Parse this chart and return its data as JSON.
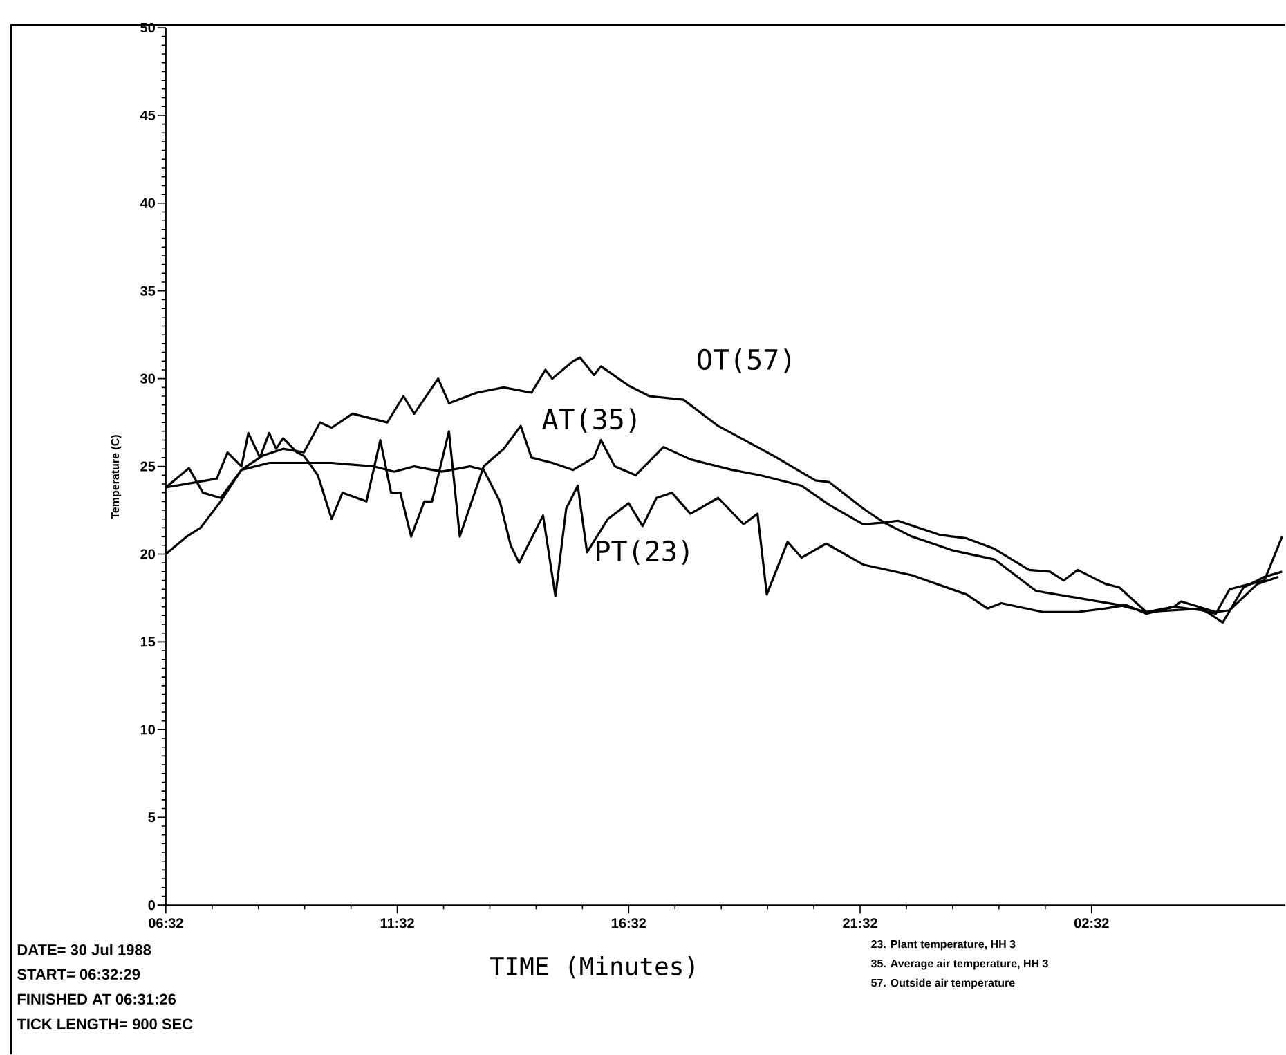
{
  "chart_data": {
    "type": "line",
    "xlabel": "TIME (Minutes)",
    "ylabel": "Temperature (C)",
    "xlim": [
      "1988-07-30T06:32",
      "1988-07-31T06:43"
    ],
    "ylim": [
      0,
      50
    ],
    "xticks": [
      {
        "value": "1988-07-30T06:32",
        "label": "06:32"
      },
      {
        "value": "1988-07-30T11:32",
        "label": "11:32"
      },
      {
        "value": "1988-07-30T16:32",
        "label": "16:32"
      },
      {
        "value": "1988-07-30T21:32",
        "label": "21:32"
      },
      {
        "value": "1988-07-31T02:32",
        "label": "02:32"
      }
    ],
    "yticks": [
      0,
      5,
      10,
      15,
      20,
      25,
      30,
      35,
      40,
      45,
      50
    ],
    "marker": "none",
    "line_style": "solid",
    "grid": false,
    "series": [
      {
        "name": "OT(57)",
        "color": "#000000",
        "x": [
          "1988-07-30T06:32",
          "1988-07-30T07:02",
          "1988-07-30T07:20",
          "1988-07-30T07:43",
          "1988-07-30T08:10",
          "1988-07-30T08:37",
          "1988-07-30T09:04",
          "1988-07-30T09:31",
          "1988-07-30T09:52",
          "1988-07-30T10:07",
          "1988-07-30T10:34",
          "1988-07-30T11:19",
          "1988-07-30T11:40",
          "1988-07-30T11:54",
          "1988-07-30T12:25",
          "1988-07-30T12:39",
          "1988-07-30T13:15",
          "1988-07-30T13:50",
          "1988-07-30T14:26",
          "1988-07-30T14:44",
          "1988-07-30T14:53",
          "1988-07-30T15:20",
          "1988-07-30T15:29",
          "1988-07-30T15:47",
          "1988-07-30T15:56",
          "1988-07-30T16:32",
          "1988-07-30T16:59",
          "1988-07-30T17:43",
          "1988-07-30T18:28",
          "1988-07-30T19:40",
          "1988-07-30T20:34",
          "1988-07-30T20:52",
          "1988-07-30T21:36",
          "1988-07-30T22:03",
          "1988-07-30T22:21",
          "1988-07-30T23:15",
          "1988-07-30T23:50",
          "1988-07-31T00:26",
          "1988-07-31T01:11",
          "1988-07-31T01:38",
          "1988-07-31T01:56",
          "1988-07-31T02:14",
          "1988-07-31T02:50",
          "1988-07-31T03:08",
          "1988-07-31T03:43",
          "1988-07-31T04:19",
          "1988-07-31T04:55",
          "1988-07-31T05:13",
          "1988-07-31T05:31",
          "1988-07-31T05:58",
          "1988-07-31T06:16",
          "1988-07-31T06:39"
        ],
        "values": [
          23.8,
          24.9,
          23.5,
          23.2,
          24.8,
          25.6,
          26.0,
          25.8,
          27.5,
          27.2,
          28.0,
          27.5,
          29.0,
          28.0,
          30.0,
          28.6,
          29.2,
          29.5,
          29.2,
          30.5,
          30.0,
          31.0,
          31.2,
          30.2,
          30.7,
          29.6,
          29.0,
          28.8,
          27.3,
          25.6,
          24.2,
          24.1,
          22.6,
          21.8,
          21.9,
          21.1,
          20.9,
          20.3,
          19.1,
          19.0,
          18.5,
          19.1,
          18.3,
          18.1,
          16.7,
          17.0,
          16.8,
          16.6,
          18.0,
          18.3,
          18.5,
          21.0
        ]
      },
      {
        "name": "AT(35)",
        "color": "#000000",
        "x": [
          "1988-07-30T06:32",
          "1988-07-30T07:38",
          "1988-07-30T07:52",
          "1988-07-30T08:10",
          "1988-07-30T08:19",
          "1988-07-30T08:34",
          "1988-07-30T08:46",
          "1988-07-30T08:55",
          "1988-07-30T09:04",
          "1988-07-30T09:22",
          "1988-07-30T09:31",
          "1988-07-30T09:49",
          "1988-07-30T10:07",
          "1988-07-30T10:21",
          "1988-07-30T10:52",
          "1988-07-30T11:10",
          "1988-07-30T11:24",
          "1988-07-30T11:36",
          "1988-07-30T11:50",
          "1988-07-30T12:07",
          "1988-07-30T12:17",
          "1988-07-30T12:39",
          "1988-07-30T12:53",
          "1988-07-30T13:24",
          "1988-07-30T13:50",
          "1988-07-30T14:12",
          "1988-07-30T14:26",
          "1988-07-30T14:53",
          "1988-07-30T15:20",
          "1988-07-30T15:47",
          "1988-07-30T15:56",
          "1988-07-30T16:14",
          "1988-07-30T16:41",
          "1988-07-30T17:17",
          "1988-07-30T17:52",
          "1988-07-30T18:46",
          "1988-07-30T19:22",
          "1988-07-30T20:16",
          "1988-07-30T20:52",
          "1988-07-30T21:36",
          "1988-07-30T22:03",
          "1988-07-30T22:39",
          "1988-07-30T23:33",
          "1988-07-31T00:26",
          "1988-07-31T01:20",
          "1988-07-31T02:14",
          "1988-07-31T03:08",
          "1988-07-31T03:43",
          "1988-07-31T04:19",
          "1988-07-31T04:55",
          "1988-07-31T05:22",
          "1988-07-31T05:49",
          "1988-07-31T06:16",
          "1988-07-31T06:39"
        ],
        "values": [
          23.8,
          24.3,
          25.8,
          25.0,
          26.9,
          25.5,
          26.9,
          26.0,
          26.6,
          25.8,
          25.6,
          24.5,
          22.0,
          23.5,
          23.0,
          26.5,
          23.5,
          23.5,
          21.0,
          23.0,
          23.0,
          27.0,
          21.0,
          25.0,
          26.0,
          27.3,
          25.5,
          25.2,
          24.8,
          25.5,
          26.5,
          25.0,
          24.5,
          26.1,
          25.4,
          24.8,
          24.5,
          23.9,
          22.8,
          21.7,
          21.8,
          21.0,
          20.2,
          19.7,
          17.9,
          17.5,
          17.1,
          16.7,
          16.8,
          16.9,
          16.1,
          18.1,
          18.7,
          19.0
        ]
      },
      {
        "name": "PT(23)",
        "color": "#000000",
        "x": [
          "1988-07-30T06:32",
          "1988-07-30T06:59",
          "1988-07-30T07:17",
          "1988-07-30T07:43",
          "1988-07-30T08:10",
          "1988-07-30T08:46",
          "1988-07-30T10:07",
          "1988-07-30T11:01",
          "1988-07-30T11:28",
          "1988-07-30T11:54",
          "1988-07-30T12:30",
          "1988-07-30T13:06",
          "1988-07-30T13:24",
          "1988-07-30T13:45",
          "1988-07-30T13:59",
          "1988-07-30T14:10",
          "1988-07-30T14:41",
          "1988-07-30T14:57",
          "1988-07-30T15:11",
          "1988-07-30T15:26",
          "1988-07-30T15:38",
          "1988-07-30T16:05",
          "1988-07-30T16:32",
          "1988-07-30T16:50",
          "1988-07-30T17:08",
          "1988-07-30T17:28",
          "1988-07-30T17:52",
          "1988-07-30T18:28",
          "1988-07-30T19:01",
          "1988-07-30T19:19",
          "1988-07-30T19:31",
          "1988-07-30T19:58",
          "1988-07-30T20:16",
          "1988-07-30T20:48",
          "1988-07-30T21:36",
          "1988-07-30T22:39",
          "1988-07-30T23:50",
          "1988-07-31T00:17",
          "1988-07-31T00:35",
          "1988-07-31T01:29",
          "1988-07-31T02:14",
          "1988-07-31T02:50",
          "1988-07-31T03:17",
          "1988-07-31T03:43",
          "1988-07-31T04:19",
          "1988-07-31T04:28",
          "1988-07-31T05:13",
          "1988-07-31T05:31",
          "1988-07-31T06:07",
          "1988-07-31T06:34"
        ],
        "values": [
          20.0,
          21.0,
          21.5,
          23.0,
          24.8,
          25.2,
          25.2,
          25.0,
          24.7,
          25.0,
          24.7,
          25.0,
          24.8,
          23.0,
          20.5,
          19.5,
          22.2,
          17.6,
          22.6,
          23.9,
          20.1,
          22.0,
          22.9,
          21.6,
          23.2,
          23.5,
          22.3,
          23.2,
          21.7,
          22.3,
          17.7,
          20.7,
          19.8,
          20.6,
          19.4,
          18.8,
          17.7,
          16.9,
          17.2,
          16.7,
          16.7,
          16.9,
          17.1,
          16.6,
          17.0,
          17.3,
          16.7,
          16.8,
          18.3,
          18.7
        ]
      }
    ],
    "annotations": [
      "DATE= 30 Jul 1988",
      "START= 06:32:29",
      "FINISHED AT 06:31:26",
      "TICK LENGTH= 900 SEC",
      "23. Plant temperature, HH 3",
      "35. Average air temperature, HH 3",
      "57. Outside air temperature"
    ]
  }
}
